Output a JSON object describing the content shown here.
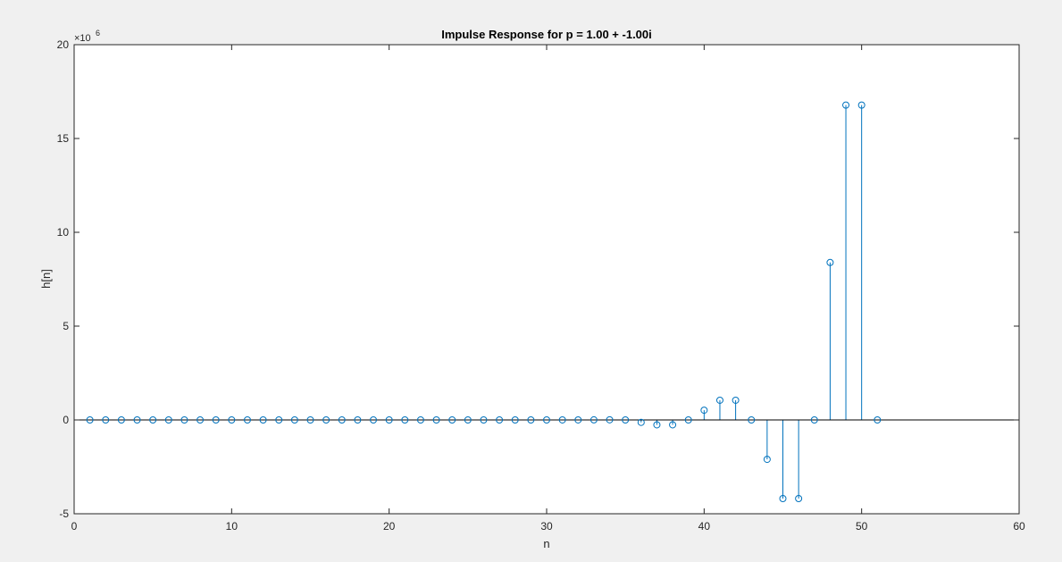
{
  "figure": {
    "background": "#f0f0f0",
    "axes_background": "#ffffff",
    "series_color": "#0072bd",
    "axis_color": "#262626"
  },
  "chart_data": {
    "type": "stem",
    "title": "Impulse Response for p = 1.00 + -1.00i",
    "xlabel": "n",
    "ylabel": "h[n]",
    "y_exponent_label": "×10",
    "y_exponent": "6",
    "xlim": [
      0,
      60
    ],
    "ylim": [
      -5,
      20
    ],
    "y_scale_factor": 1000000,
    "xticks": [
      0,
      10,
      20,
      30,
      40,
      50,
      60
    ],
    "yticks": [
      -5,
      0,
      5,
      10,
      15,
      20
    ],
    "grid": false,
    "box": true,
    "baseline": 0,
    "x": [
      1,
      2,
      3,
      4,
      5,
      6,
      7,
      8,
      9,
      10,
      11,
      12,
      13,
      14,
      15,
      16,
      17,
      18,
      19,
      20,
      21,
      22,
      23,
      24,
      25,
      26,
      27,
      28,
      29,
      30,
      31,
      32,
      33,
      34,
      35,
      36,
      37,
      38,
      39,
      40,
      41,
      42,
      43,
      44,
      45,
      46,
      47,
      48,
      49,
      50,
      51
    ],
    "y": [
      0,
      0,
      0,
      0,
      0,
      0,
      0,
      0,
      0,
      0,
      0,
      0,
      0,
      0,
      0,
      0,
      0,
      0,
      0,
      0,
      0,
      0,
      0,
      0,
      0,
      0,
      0,
      0,
      0,
      0.0005,
      0.001,
      0.002,
      0.004,
      0.008,
      0,
      -0.13,
      -0.26,
      -0.26,
      0,
      0.52,
      1.05,
      1.05,
      0,
      -2.1,
      -4.19,
      -4.19,
      0,
      8.39,
      16.78,
      16.78,
      0
    ]
  }
}
